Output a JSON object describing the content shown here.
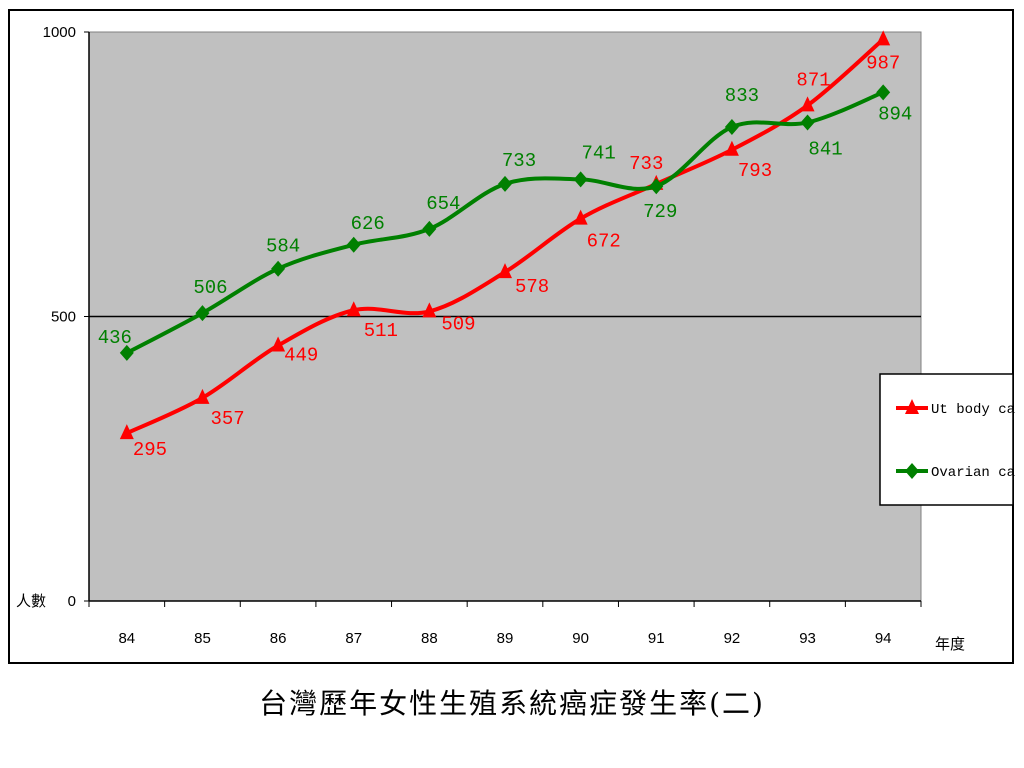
{
  "chart_data": {
    "type": "line",
    "title": "台灣歷年女性生殖系統癌症發生率(二)",
    "xlabel": "年度",
    "ylabel": "人數",
    "categories": [
      "84",
      "85",
      "86",
      "87",
      "88",
      "89",
      "90",
      "91",
      "92",
      "93",
      "94"
    ],
    "ylim": [
      0,
      1000
    ],
    "yticks": [
      "0",
      "500",
      "1000"
    ],
    "grid": "horizontal line at 500",
    "legend_position": "right",
    "background_color": "#c0c0c0",
    "series": [
      {
        "name": "Ut body ca",
        "color": "#ff0000",
        "marker": "triangle",
        "values": [
          295,
          357,
          449,
          511,
          509,
          578,
          672,
          733,
          793,
          871,
          987
        ]
      },
      {
        "name": "Ovarian ca",
        "color": "#008000",
        "marker": "diamond",
        "values": [
          436,
          506,
          584,
          626,
          654,
          733,
          741,
          729,
          833,
          841,
          894
        ]
      }
    ]
  }
}
